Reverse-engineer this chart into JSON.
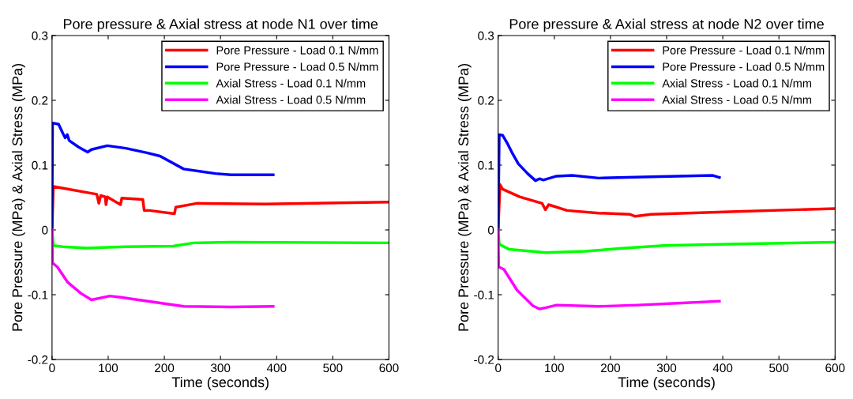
{
  "chart_data": [
    {
      "type": "line",
      "title": "Pore pressure & Axial stress at node N1 over time",
      "xlabel": "Time (seconds)",
      "ylabel": "Pore Pressure (MPa) & Axial Stress (MPa)",
      "xlim": [
        0,
        600
      ],
      "xticks": [
        0,
        100,
        200,
        300,
        400,
        500,
        600
      ],
      "ylim": [
        -0.2,
        0.3
      ],
      "yticks": [
        -0.2,
        -0.1,
        0,
        0.1,
        0.2,
        0.3
      ],
      "legend": "top right",
      "grid": false,
      "series": [
        {
          "name": "Pore Pressure - Load 0.1 N/mm",
          "color": "#ff0000",
          "x": [
            0,
            2.3,
            79.7,
            83.4,
            86.7,
            94.7,
            96.1,
            98.4,
            121.9,
            124.2,
            161.7,
            164.1,
            173.4,
            218,
            220.3,
            257.8,
            379.7,
            600
          ],
          "values": [
            0,
            0.067,
            0.055,
            0.041,
            0.053,
            0.051,
            0.039,
            0.051,
            0.039,
            0.049,
            0.047,
            0.03,
            0.03,
            0.025,
            0.035,
            0.041,
            0.04,
            0.043
          ]
        },
        {
          "name": "Pore Pressure - Load 0.5 N/mm",
          "color": "#0000ff",
          "x": [
            0,
            0.9,
            11.7,
            18.8,
            23.4,
            27.2,
            30.5,
            46.9,
            63.3,
            70.3,
            98.4,
            131.3,
            168.8,
            192.2,
            234.4,
            290.6,
            318.8,
            393.8
          ],
          "values": [
            0,
            0.165,
            0.163,
            0.15,
            0.142,
            0.147,
            0.138,
            0.128,
            0.12,
            0.124,
            0.13,
            0.126,
            0.119,
            0.114,
            0.094,
            0.087,
            0.085,
            0.085
          ]
        },
        {
          "name": "Axial Stress - Load 0.1 N/mm",
          "color": "#00ff00",
          "x": [
            0,
            2.3,
            18.8,
            60.9,
            131.3,
            215.6,
            253,
            318.8,
            600
          ],
          "values": [
            0,
            -0.024,
            -0.026,
            -0.028,
            -0.026,
            -0.025,
            -0.02,
            -0.019,
            -0.02
          ]
        },
        {
          "name": "Axial Stress - Load 0.5 N/mm",
          "color": "#ff00ff",
          "x": [
            0,
            0.9,
            9.4,
            28.1,
            51.6,
            70.3,
            103,
            121.9,
            178,
            234.4,
            318.8,
            393.8
          ],
          "values": [
            0,
            -0.051,
            -0.057,
            -0.081,
            -0.098,
            -0.108,
            -0.102,
            -0.104,
            -0.111,
            -0.118,
            -0.119,
            -0.118
          ]
        }
      ]
    },
    {
      "type": "line",
      "title": "Pore pressure & Axial stress at node N2 over time",
      "xlabel": "Time (seconds)",
      "ylabel": "Pore Pressure (MPa) & Axial Stress (MPa)",
      "xlim": [
        0,
        600
      ],
      "xticks": [
        0,
        100,
        200,
        300,
        400,
        500,
        600
      ],
      "ylim": [
        -0.2,
        0.3
      ],
      "yticks": [
        -0.2,
        -0.1,
        0,
        0.1,
        0.2,
        0.3
      ],
      "legend": "top right",
      "grid": false,
      "series": [
        {
          "name": "Pore Pressure - Load 0.1 N/mm",
          "color": "#ff0000",
          "x": [
            0,
            3.3,
            7.9,
            38.4,
            78.2,
            84.2,
            89.9,
            122.6,
            178.8,
            235,
            244,
            272.4,
            412.8,
            600
          ],
          "values": [
            0,
            0.07,
            0.063,
            0.051,
            0.041,
            0.031,
            0.039,
            0.03,
            0.026,
            0.024,
            0.021,
            0.024,
            0.028,
            0.033
          ]
        },
        {
          "name": "Pore Pressure - Load 0.5 N/mm",
          "color": "#0000ff",
          "x": [
            0,
            1.9,
            7.9,
            17.3,
            24.3,
            36,
            52.4,
            66.5,
            73.5,
            80.5,
            104,
            132,
            178.8,
            272.4,
            382.4,
            394
          ],
          "values": [
            0,
            0.147,
            0.146,
            0.132,
            0.12,
            0.102,
            0.087,
            0.076,
            0.079,
            0.077,
            0.083,
            0.084,
            0.08,
            0.082,
            0.084,
            0.081
          ]
        },
        {
          "name": "Axial Stress - Load 0.1 N/mm",
          "color": "#00ff00",
          "x": [
            0,
            1.9,
            19.7,
            85.2,
            155.4,
            225.6,
            295.8,
            412.8,
            600
          ],
          "values": [
            0,
            -0.022,
            -0.03,
            -0.035,
            -0.033,
            -0.028,
            -0.024,
            -0.022,
            -0.019
          ]
        },
        {
          "name": "Axial Stress - Load 0.5 N/mm",
          "color": "#ff00ff",
          "x": [
            0,
            0.9,
            10.3,
            33.7,
            61.8,
            73.5,
            85.2,
            104,
            178.8,
            249,
            319,
            394
          ],
          "values": [
            0,
            -0.057,
            -0.061,
            -0.093,
            -0.117,
            -0.122,
            -0.12,
            -0.116,
            -0.118,
            -0.116,
            -0.113,
            -0.11
          ]
        }
      ]
    }
  ]
}
